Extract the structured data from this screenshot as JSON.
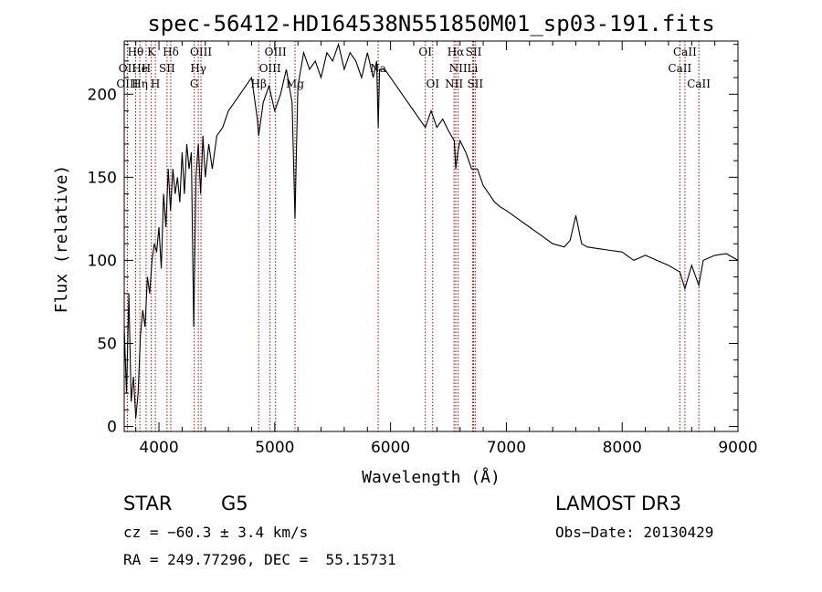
{
  "chart_data": {
    "type": "line",
    "title": "spec-56412-HD164538N551850M01_sp03-191.fits",
    "xlabel": "Wavelength (Å)",
    "ylabel": "Flux (relative)",
    "xlim": [
      3700,
      9000
    ],
    "ylim": [
      -3,
      232
    ],
    "xticks": [
      4000,
      5000,
      6000,
      7000,
      8000,
      9000
    ],
    "yticks": [
      0,
      50,
      100,
      150,
      200
    ],
    "series": [
      {
        "x": [
          3700,
          3720,
          3740,
          3760,
          3780,
          3800,
          3820,
          3840,
          3860,
          3880,
          3900,
          3920,
          3940,
          3960,
          3980,
          4000,
          4020,
          4040,
          4060,
          4080,
          4100,
          4120,
          4140,
          4160,
          4180,
          4200,
          4220,
          4240,
          4260,
          4280,
          4300,
          4320,
          4340,
          4360,
          4380,
          4400,
          4430,
          4460,
          4500,
          4550,
          4600,
          4650,
          4700,
          4750,
          4800,
          4850,
          4861,
          4900,
          4950,
          5000,
          5050,
          5100,
          5150,
          5175,
          5185,
          5200,
          5250,
          5300,
          5350,
          5400,
          5450,
          5500,
          5550,
          5600,
          5650,
          5700,
          5750,
          5800,
          5850,
          5880,
          5893,
          5905,
          5950,
          6000,
          6050,
          6100,
          6150,
          6200,
          6250,
          6300,
          6350,
          6400,
          6450,
          6500,
          6550,
          6563,
          6580,
          6600,
          6650,
          6700,
          6750,
          6800,
          6850,
          6900,
          6950,
          7000,
          7100,
          7200,
          7300,
          7400,
          7500,
          7550,
          7600,
          7650,
          7700,
          7800,
          7900,
          8000,
          8100,
          8200,
          8300,
          8400,
          8498,
          8542,
          8600,
          8662,
          8700,
          8800,
          8900,
          9000
        ],
        "y": [
          60,
          20,
          80,
          15,
          30,
          5,
          20,
          55,
          70,
          60,
          90,
          80,
          100,
          110,
          105,
          120,
          95,
          140,
          120,
          155,
          130,
          155,
          140,
          150,
          135,
          165,
          140,
          170,
          155,
          165,
          60,
          150,
          170,
          140,
          175,
          150,
          170,
          155,
          175,
          180,
          190,
          195,
          200,
          205,
          210,
          185,
          175,
          195,
          205,
          190,
          200,
          215,
          195,
          125,
          160,
          205,
          225,
          215,
          220,
          210,
          225,
          220,
          230,
          215,
          225,
          220,
          210,
          225,
          210,
          220,
          180,
          215,
          215,
          210,
          205,
          200,
          195,
          190,
          185,
          180,
          190,
          180,
          185,
          178,
          172,
          155,
          165,
          172,
          165,
          155,
          155,
          145,
          140,
          135,
          132,
          130,
          125,
          120,
          115,
          110,
          108,
          112,
          127,
          110,
          108,
          107,
          106,
          105,
          100,
          103,
          100,
          97,
          93,
          83,
          97,
          85,
          100,
          103,
          104,
          100
        ]
      }
    ],
    "spectral_lines": [
      {
        "label": "Hθ",
        "x": 3798,
        "row": 0
      },
      {
        "label": "K",
        "x": 3934,
        "row": 0
      },
      {
        "label": "Hδ",
        "x": 4102,
        "row": 0
      },
      {
        "label": "OIII",
        "x": 4363,
        "row": 0
      },
      {
        "label": "OIII",
        "x": 5007,
        "row": 0
      },
      {
        "label": "OI",
        "x": 6300,
        "row": 0
      },
      {
        "label": "Hα",
        "x": 6563,
        "row": 0
      },
      {
        "label": "SII",
        "x": 6717,
        "row": 0
      },
      {
        "label": "CaII",
        "x": 8542,
        "row": 0
      },
      {
        "label": "OII",
        "x": 3727,
        "row": 1
      },
      {
        "label": "He",
        "x": 3835,
        "row": 1
      },
      {
        "label": "H",
        "x": 3889,
        "row": 1
      },
      {
        "label": "SII",
        "x": 4070,
        "row": 1
      },
      {
        "label": "Hγ",
        "x": 4340,
        "row": 1
      },
      {
        "label": "OIII",
        "x": 4959,
        "row": 1
      },
      {
        "label": "Na",
        "x": 5893,
        "row": 1
      },
      {
        "label": "NII",
        "x": 6584,
        "row": 1
      },
      {
        "label": "Li",
        "x": 6708,
        "row": 1
      },
      {
        "label": "CaII",
        "x": 8498,
        "row": 1
      },
      {
        "label": "OIII",
        "x": 3727,
        "row": 2
      },
      {
        "label": "Hη",
        "x": 3835,
        "row": 2
      },
      {
        "label": "H",
        "x": 3969,
        "row": 2
      },
      {
        "label": "G",
        "x": 4305,
        "row": 2
      },
      {
        "label": "Hβ",
        "x": 4861,
        "row": 2
      },
      {
        "label": "Mg",
        "x": 5175,
        "row": 2
      },
      {
        "label": "OI",
        "x": 6364,
        "row": 2
      },
      {
        "label": "NII",
        "x": 6548,
        "row": 2
      },
      {
        "label": "SII",
        "x": 6731,
        "row": 2
      },
      {
        "label": "CaII",
        "x": 8662,
        "row": 2
      }
    ]
  },
  "info": {
    "object_class": "STAR",
    "subclass": "G5",
    "cz": "cz = −60.3 ± 3.4 km/s",
    "coords": "RA = 249.77296, DEC =  55.15731",
    "survey": "LAMOST DR3",
    "obs_date": "Obs−Date: 20130429"
  }
}
